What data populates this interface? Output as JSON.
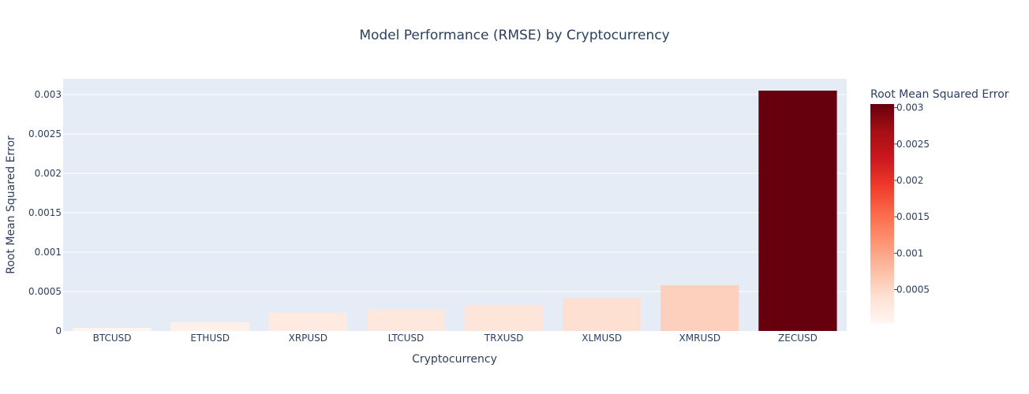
{
  "chart_data": {
    "type": "bar",
    "title": "Model Performance (RMSE) by Cryptocurrency",
    "xlabel": "Cryptocurrency",
    "ylabel": "Root Mean Squared Error",
    "categories": [
      "BTCUSD",
      "ETHUSD",
      "XRPUSD",
      "LTCUSD",
      "TRXUSD",
      "XLMUSD",
      "XMRUSD",
      "ZECUSD"
    ],
    "values": [
      4e-05,
      0.00011,
      0.00023,
      0.00027,
      0.00033,
      0.00042,
      0.00058,
      0.00305
    ],
    "ylim": [
      0,
      0.0032
    ],
    "yticks": [
      0,
      0.0005,
      0.001,
      0.0015,
      0.002,
      0.0025,
      0.003
    ],
    "ytick_labels": [
      "0",
      "0.0005",
      "0.001",
      "0.0015",
      "0.002",
      "0.0025",
      "0.003"
    ],
    "grid": true,
    "colorbar": {
      "title": "Root Mean Squared Error",
      "colorscale": "Reds",
      "range": [
        4e-05,
        0.00305
      ],
      "ticks": [
        0.0005,
        0.001,
        0.0015,
        0.002,
        0.0025,
        0.003
      ],
      "tick_labels": [
        "0.0005",
        "0.001",
        "0.0015",
        "0.002",
        "0.0025",
        "0.003"
      ]
    },
    "colors": {
      "plot_background": "#e5ecf6",
      "gridline": "#ffffff",
      "text": "#2a3f5f"
    }
  }
}
